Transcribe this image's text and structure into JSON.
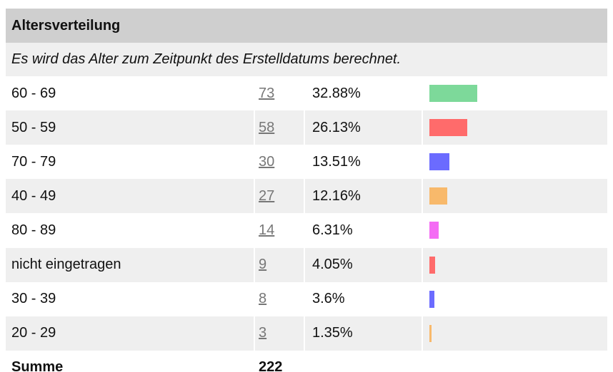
{
  "title": "Altersverteilung",
  "subtitle": "Es wird das Alter zum Zeitpunkt des Erstelldatums berechnet.",
  "rows": [
    {
      "label": "60 - 69",
      "count": 73,
      "percent": "32.88%",
      "color": "#7dd99a"
    },
    {
      "label": "50 - 59",
      "count": 58,
      "percent": "26.13%",
      "color": "#ff6b6b"
    },
    {
      "label": "70 - 79",
      "count": 30,
      "percent": "13.51%",
      "color": "#6b6bff"
    },
    {
      "label": "40 - 49",
      "count": 27,
      "percent": "12.16%",
      "color": "#f8b96b"
    },
    {
      "label": "80 - 89",
      "count": 14,
      "percent": "6.31%",
      "color": "#f46bf4"
    },
    {
      "label": "nicht eingetragen",
      "count": 9,
      "percent": "4.05%",
      "color": "#ff6b6b"
    },
    {
      "label": "30 - 39",
      "count": 8,
      "percent": "3.6%",
      "color": "#6b6bff"
    },
    {
      "label": "20 - 29",
      "count": 3,
      "percent": "1.35%",
      "color": "#f8b96b"
    }
  ],
  "total": {
    "label": "Summe",
    "count": 222
  }
}
